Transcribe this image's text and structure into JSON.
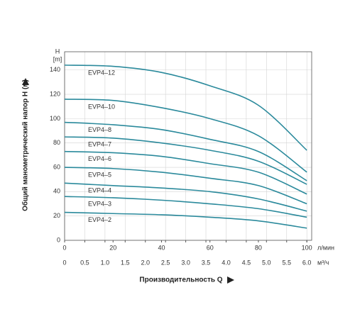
{
  "chart_data": {
    "type": "line",
    "y_unit_symbol": "H",
    "y_unit": "[m]",
    "y_label": "Общий манометрический напор H (м)",
    "x_label": "Производительность Q",
    "x_unit": "л/мин",
    "x2_unit": "м³/ч",
    "x": [
      0,
      20,
      40,
      60,
      80,
      100
    ],
    "xlim": [
      0,
      102
    ],
    "xticks": [
      0,
      20,
      40,
      60,
      80,
      100
    ],
    "x2lim": [
      0,
      6.12
    ],
    "x2ticks": [
      0,
      0.5,
      {
        "value": 1,
        "label": "1.0"
      },
      1.5,
      {
        "value": 2,
        "label": "2.0"
      },
      2.5,
      {
        "value": 3,
        "label": "3.0"
      },
      3.5,
      {
        "value": 4,
        "label": "4.0"
      },
      4.5,
      {
        "value": 5,
        "label": "5.0"
      },
      5.5,
      {
        "value": 6,
        "label": "6.0"
      }
    ],
    "ylim": [
      0,
      155
    ],
    "yticks": [
      0,
      20,
      40,
      60,
      80,
      100,
      120,
      140
    ],
    "grid": true,
    "series": [
      {
        "name": "EVP4–12",
        "color": "#2b8a9c",
        "values": [
          144,
          143,
          138,
          127,
          111,
          74
        ]
      },
      {
        "name": "EVP4–10",
        "color": "#2b8a9c",
        "values": [
          116,
          115,
          109,
          100,
          86,
          56
        ]
      },
      {
        "name": "EVP4–8",
        "color": "#2b8a9c",
        "values": [
          97,
          95,
          91,
          83,
          73,
          49
        ]
      },
      {
        "name": "EVP4–7",
        "color": "#2b8a9c",
        "values": [
          85,
          84,
          80,
          74,
          65,
          46
        ]
      },
      {
        "name": "EVP4–6",
        "color": "#2b8a9c",
        "values": [
          73,
          72,
          69,
          63,
          56,
          38
        ]
      },
      {
        "name": "EVP4–5",
        "color": "#2b8a9c",
        "values": [
          60,
          59,
          56,
          51,
          45,
          30
        ]
      },
      {
        "name": "EVP4–4",
        "color": "#2b8a9c",
        "values": [
          47,
          45,
          43,
          40,
          34,
          24
        ]
      },
      {
        "name": "EVP4–3",
        "color": "#2b8a9c",
        "values": [
          36,
          35,
          33,
          30,
          26,
          19
        ]
      },
      {
        "name": "EVP4–2",
        "color": "#2b8a9c",
        "values": [
          23,
          22,
          21,
          19,
          16,
          10
        ]
      }
    ]
  }
}
